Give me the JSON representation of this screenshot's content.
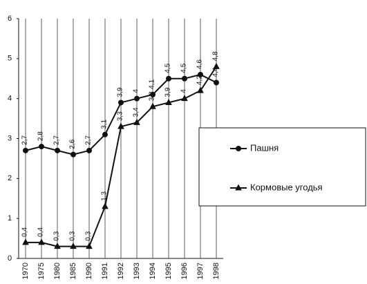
{
  "chart_data": {
    "type": "line",
    "categories": [
      "1970",
      "1975",
      "1980",
      "1985",
      "1990",
      "1991",
      "1992",
      "1993",
      "1994",
      "1995",
      "1996",
      "1997",
      "1998"
    ],
    "series": [
      {
        "name": "Пашня",
        "color": "#111111",
        "marker": "circle",
        "values": [
          2.7,
          2.8,
          2.7,
          2.6,
          2.7,
          3.1,
          3.9,
          4,
          4.1,
          4.5,
          4.5,
          4.6,
          4.4
        ],
        "value_labels": [
          "2,7",
          "2,8",
          "2,7",
          "2,6",
          "2,7",
          "3,1",
          "3,9",
          "4",
          "4,1",
          "4,5",
          "4,5",
          "4,6",
          "4,4"
        ]
      },
      {
        "name": "Кормовые угодья",
        "color": "#111111",
        "marker": "triangle",
        "values": [
          0.4,
          0.4,
          0.3,
          0.3,
          0.3,
          1.3,
          3.3,
          3.4,
          3.8,
          3.9,
          4,
          4.2,
          4.8
        ],
        "value_labels": [
          "0,4",
          "0,4",
          "0,3",
          "0,3",
          "0,3",
          "1,3",
          "3,3",
          "3,4",
          "3,8",
          "3,9",
          "4",
          "4,2",
          "4,8"
        ]
      }
    ],
    "ylim": [
      0,
      6
    ],
    "yticks": [
      0,
      1,
      2,
      3,
      4,
      5,
      6
    ],
    "grid": true
  }
}
